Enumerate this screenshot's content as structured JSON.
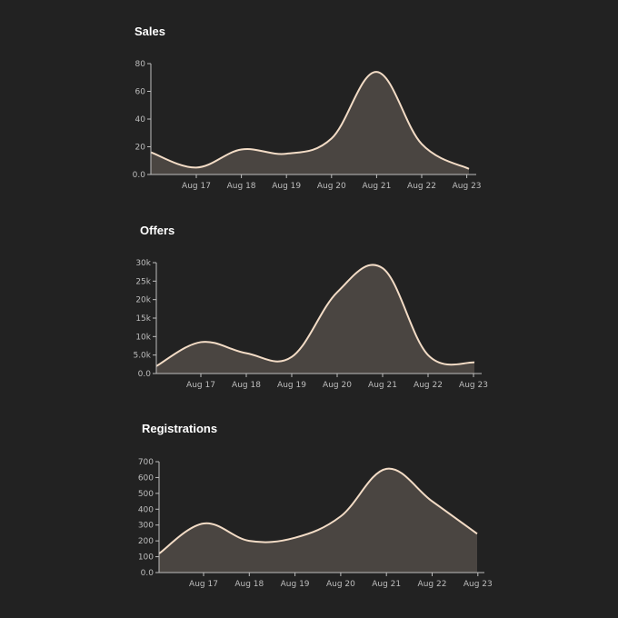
{
  "colors": {
    "background": "#222222",
    "line": "#f3dcc6",
    "fill": "#4a4541",
    "axis": "#bdbdbd"
  },
  "chart_data": [
    {
      "type": "area",
      "title": "Sales",
      "categories": [
        "Aug 17",
        "Aug 18",
        "Aug 19",
        "Aug 20",
        "Aug 21",
        "Aug 22",
        "Aug 23"
      ],
      "yticks": [
        "0.0",
        "20",
        "40",
        "60",
        "80"
      ],
      "ylim": [
        0,
        80
      ],
      "points": [
        {
          "x": "Aug 16",
          "y": 16
        },
        {
          "x": "Aug 17",
          "y": 5
        },
        {
          "x": "Aug 18",
          "y": 18
        },
        {
          "x": "Aug 19",
          "y": 15
        },
        {
          "x": "Aug 20",
          "y": 26
        },
        {
          "x": "Aug 21",
          "y": 74
        },
        {
          "x": "Aug 22",
          "y": 22
        },
        {
          "x": "Aug 23",
          "y": 4
        }
      ]
    },
    {
      "type": "area",
      "title": "Offers",
      "categories": [
        "Aug 17",
        "Aug 18",
        "Aug 19",
        "Aug 20",
        "Aug 21",
        "Aug 22",
        "Aug 23"
      ],
      "yticks": [
        "0.0",
        "5.0k",
        "10k",
        "15k",
        "20k",
        "25k",
        "30k"
      ],
      "ylim": [
        0,
        30000
      ],
      "points": [
        {
          "x": "Aug 16",
          "y": 2000
        },
        {
          "x": "Aug 17",
          "y": 8500
        },
        {
          "x": "Aug 18",
          "y": 5500
        },
        {
          "x": "Aug 19",
          "y": 4500
        },
        {
          "x": "Aug 20",
          "y": 22000
        },
        {
          "x": "Aug 21",
          "y": 28500
        },
        {
          "x": "Aug 22",
          "y": 5000
        },
        {
          "x": "Aug 23",
          "y": 3000
        }
      ]
    },
    {
      "type": "area",
      "title": "Registrations",
      "categories": [
        "Aug 17",
        "Aug 18",
        "Aug 19",
        "Aug 20",
        "Aug 21",
        "Aug 22",
        "Aug 23"
      ],
      "yticks": [
        "0.0",
        "100",
        "200",
        "300",
        "400",
        "500",
        "600",
        "700"
      ],
      "ylim": [
        0,
        700
      ],
      "points": [
        {
          "x": "Aug 16",
          "y": 120
        },
        {
          "x": "Aug 17",
          "y": 310
        },
        {
          "x": "Aug 18",
          "y": 200
        },
        {
          "x": "Aug 19",
          "y": 220
        },
        {
          "x": "Aug 20",
          "y": 355
        },
        {
          "x": "Aug 21",
          "y": 655
        },
        {
          "x": "Aug 22",
          "y": 450
        },
        {
          "x": "Aug 23",
          "y": 245
        }
      ]
    }
  ]
}
